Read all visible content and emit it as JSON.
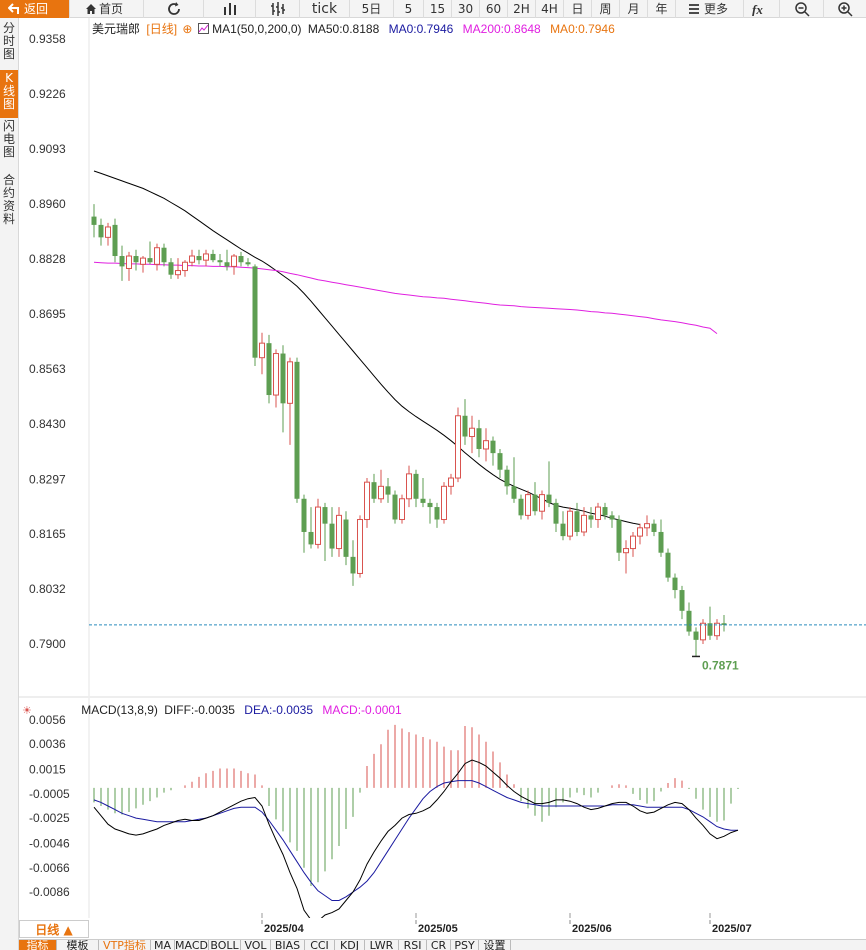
{
  "toolbar": {
    "back": "返回",
    "home": "首页",
    "tick": "tick",
    "periods": [
      "5日",
      "5",
      "15",
      "30",
      "60",
      "2H",
      "4H",
      "日",
      "周",
      "月",
      "年"
    ],
    "more": "更多",
    "icons": [
      "arrow-left-icon",
      "home-icon",
      "refresh-icon",
      "candle-type-icon",
      "bar-type-icon",
      "fx-icon",
      "zoom-out-icon",
      "zoom-in-icon"
    ]
  },
  "side_tabs": [
    "分时图",
    "K线图",
    "闪电图",
    "合约资料"
  ],
  "legend": {
    "symbol": "美元瑞郎",
    "period": "[日线]",
    "ma_label": "MA1(50,0,200,0)",
    "ma50": "MA50:0.8188",
    "ma0_a": "MA0:0.7946",
    "ma200": "MA200:0.8648",
    "ma0_b": "MA0:0.7946"
  },
  "macd_legend": {
    "name": "MACD(13,8,9)",
    "diff": "DIFF:-0.0035",
    "dea": "DEA:-0.0035",
    "macd": "MACD:-0.0001"
  },
  "colors": {
    "up": "#d9534f",
    "down": "#5e9e52",
    "ma50": "#000000",
    "ma200": "#e020e0",
    "diff": "#000000",
    "dea": "#1a1aa0",
    "last_price_line": "#2a8cbd",
    "accent": "#e8740f"
  },
  "chart_data": [
    {
      "type": "candlestick",
      "title": "美元瑞郎 [日线]",
      "ylim": [
        0.7805,
        0.94
      ],
      "y_ticks": [
        "0.9358",
        "0.9226",
        "0.9093",
        "0.8960",
        "0.8828",
        "0.8695",
        "0.8563",
        "0.8430",
        "0.8297",
        "0.8165",
        "0.8032",
        "0.7900"
      ],
      "x_tick_labels": [
        {
          "label": "2025/04",
          "index": 24
        },
        {
          "label": "2025/05",
          "index": 46
        },
        {
          "label": "2025/06",
          "index": 68
        },
        {
          "label": "2025/07",
          "index": 88
        }
      ],
      "last_price": 0.7946,
      "low_annotation": "0.7871",
      "low_annotation_index": 86,
      "ohlc": [
        [
          0.893,
          0.896,
          0.888,
          0.891
        ],
        [
          0.891,
          0.8925,
          0.886,
          0.888
        ],
        [
          0.888,
          0.8915,
          0.886,
          0.8905
        ],
        [
          0.891,
          0.8925,
          0.882,
          0.8835
        ],
        [
          0.8835,
          0.886,
          0.8775,
          0.881
        ],
        [
          0.8805,
          0.8845,
          0.8775,
          0.8835
        ],
        [
          0.8835,
          0.885,
          0.88,
          0.882
        ],
        [
          0.8815,
          0.8835,
          0.8795,
          0.883
        ],
        [
          0.883,
          0.887,
          0.8815,
          0.882
        ],
        [
          0.8815,
          0.8865,
          0.88,
          0.8855
        ],
        [
          0.8855,
          0.8865,
          0.881,
          0.882
        ],
        [
          0.882,
          0.883,
          0.878,
          0.879
        ],
        [
          0.879,
          0.883,
          0.878,
          0.88
        ],
        [
          0.88,
          0.8825,
          0.8785,
          0.882
        ],
        [
          0.882,
          0.885,
          0.881,
          0.8835
        ],
        [
          0.8835,
          0.885,
          0.8815,
          0.8825
        ],
        [
          0.8825,
          0.885,
          0.881,
          0.884
        ],
        [
          0.884,
          0.885,
          0.882,
          0.8825
        ],
        [
          0.8825,
          0.884,
          0.881,
          0.882
        ],
        [
          0.882,
          0.885,
          0.88,
          0.881
        ],
        [
          0.881,
          0.884,
          0.879,
          0.8835
        ],
        [
          0.8835,
          0.8845,
          0.881,
          0.882
        ],
        [
          0.882,
          0.883,
          0.881,
          0.8815
        ],
        [
          0.881,
          0.8815,
          0.857,
          0.859
        ],
        [
          0.859,
          0.865,
          0.855,
          0.8625
        ],
        [
          0.8625,
          0.8645,
          0.848,
          0.85
        ],
        [
          0.85,
          0.861,
          0.847,
          0.86
        ],
        [
          0.86,
          0.862,
          0.841,
          0.848
        ],
        [
          0.848,
          0.859,
          0.838,
          0.858
        ],
        [
          0.858,
          0.859,
          0.824,
          0.825
        ],
        [
          0.825,
          0.826,
          0.812,
          0.817
        ],
        [
          0.817,
          0.823,
          0.813,
          0.814
        ],
        [
          0.814,
          0.825,
          0.813,
          0.823
        ],
        [
          0.823,
          0.824,
          0.81,
          0.819
        ],
        [
          0.819,
          0.823,
          0.811,
          0.813
        ],
        [
          0.813,
          0.823,
          0.811,
          0.821
        ],
        [
          0.82,
          0.822,
          0.809,
          0.811
        ],
        [
          0.811,
          0.815,
          0.804,
          0.807
        ],
        [
          0.807,
          0.821,
          0.806,
          0.82
        ],
        [
          0.82,
          0.83,
          0.818,
          0.829
        ],
        [
          0.829,
          0.831,
          0.824,
          0.825
        ],
        [
          0.825,
          0.832,
          0.824,
          0.828
        ],
        [
          0.828,
          0.83,
          0.824,
          0.826
        ],
        [
          0.826,
          0.827,
          0.819,
          0.82
        ],
        [
          0.82,
          0.826,
          0.819,
          0.825
        ],
        [
          0.825,
          0.833,
          0.823,
          0.831
        ],
        [
          0.831,
          0.832,
          0.823,
          0.825
        ],
        [
          0.825,
          0.83,
          0.823,
          0.824
        ],
        [
          0.824,
          0.825,
          0.819,
          0.823
        ],
        [
          0.823,
          0.824,
          0.818,
          0.82
        ],
        [
          0.82,
          0.829,
          0.819,
          0.828
        ],
        [
          0.828,
          0.831,
          0.826,
          0.83
        ],
        [
          0.83,
          0.847,
          0.829,
          0.845
        ],
        [
          0.845,
          0.849,
          0.838,
          0.84
        ],
        [
          0.84,
          0.845,
          0.836,
          0.842
        ],
        [
          0.842,
          0.844,
          0.835,
          0.837
        ],
        [
          0.837,
          0.842,
          0.834,
          0.839
        ],
        [
          0.839,
          0.84,
          0.833,
          0.836
        ],
        [
          0.836,
          0.837,
          0.83,
          0.832
        ],
        [
          0.832,
          0.833,
          0.826,
          0.828
        ],
        [
          0.828,
          0.835,
          0.824,
          0.825
        ],
        [
          0.825,
          0.826,
          0.82,
          0.821
        ],
        [
          0.821,
          0.827,
          0.82,
          0.826
        ],
        [
          0.826,
          0.829,
          0.821,
          0.822
        ],
        [
          0.822,
          0.827,
          0.82,
          0.826
        ],
        [
          0.826,
          0.834,
          0.823,
          0.824
        ],
        [
          0.824,
          0.825,
          0.817,
          0.819
        ],
        [
          0.819,
          0.822,
          0.815,
          0.816
        ],
        [
          0.816,
          0.823,
          0.815,
          0.822
        ],
        [
          0.822,
          0.824,
          0.816,
          0.817
        ],
        [
          0.817,
          0.823,
          0.816,
          0.821
        ],
        [
          0.821,
          0.823,
          0.818,
          0.82
        ],
        [
          0.82,
          0.824,
          0.818,
          0.823
        ],
        [
          0.823,
          0.824,
          0.82,
          0.821
        ],
        [
          0.821,
          0.822,
          0.818,
          0.82
        ],
        [
          0.82,
          0.821,
          0.81,
          0.812
        ],
        [
          0.812,
          0.815,
          0.807,
          0.813
        ],
        [
          0.813,
          0.817,
          0.811,
          0.816
        ],
        [
          0.816,
          0.819,
          0.814,
          0.818
        ],
        [
          0.818,
          0.821,
          0.816,
          0.819
        ],
        [
          0.819,
          0.82,
          0.816,
          0.817
        ],
        [
          0.817,
          0.82,
          0.811,
          0.812
        ],
        [
          0.812,
          0.813,
          0.805,
          0.806
        ],
        [
          0.806,
          0.807,
          0.801,
          0.803
        ],
        [
          0.803,
          0.804,
          0.796,
          0.798
        ],
        [
          0.798,
          0.8,
          0.792,
          0.793
        ],
        [
          0.793,
          0.794,
          0.787,
          0.791
        ],
        [
          0.791,
          0.796,
          0.79,
          0.795
        ],
        [
          0.795,
          0.799,
          0.791,
          0.792
        ],
        [
          0.792,
          0.796,
          0.791,
          0.795
        ],
        [
          0.795,
          0.797,
          0.793,
          0.7946
        ]
      ],
      "ma50": {
        "start_index": 0,
        "values": [
          0.904,
          0.9034,
          0.9028,
          0.9022,
          0.9016,
          0.901,
          0.9004,
          0.8998,
          0.899,
          0.8982,
          0.8974,
          0.8964,
          0.8954,
          0.8944,
          0.8932,
          0.892,
          0.8908,
          0.8896,
          0.8885,
          0.8874,
          0.8863,
          0.8852,
          0.8842,
          0.8832,
          0.8823,
          0.8812,
          0.88,
          0.8788,
          0.8776,
          0.8762,
          0.8745,
          0.8726,
          0.8706,
          0.8686,
          0.8666,
          0.8646,
          0.8626,
          0.8606,
          0.8586,
          0.8566,
          0.8546,
          0.8526,
          0.8507,
          0.8489,
          0.8473,
          0.846,
          0.8448,
          0.8437,
          0.8426,
          0.8415,
          0.8403,
          0.839,
          0.8376,
          0.8361,
          0.8347,
          0.8333,
          0.832,
          0.8308,
          0.8297,
          0.8288,
          0.828,
          0.8273,
          0.8266,
          0.8258,
          0.825,
          0.8241,
          0.8234,
          0.823,
          0.8227,
          0.8224,
          0.822,
          0.8215,
          0.8212,
          0.8208,
          0.8203,
          0.8199,
          0.8195,
          0.8191,
          0.8188
        ]
      },
      "ma200": {
        "start_index": 0,
        "values": [
          0.882,
          0.8819,
          0.8818,
          0.8818,
          0.8817,
          0.8816,
          0.8816,
          0.8815,
          0.8815,
          0.8814,
          0.8814,
          0.8813,
          0.8813,
          0.8812,
          0.8812,
          0.8811,
          0.8811,
          0.881,
          0.881,
          0.8809,
          0.8809,
          0.8808,
          0.8807,
          0.8806,
          0.8804,
          0.8802,
          0.88,
          0.8797,
          0.8793,
          0.879,
          0.8786,
          0.8782,
          0.8778,
          0.8775,
          0.8772,
          0.8769,
          0.8766,
          0.8763,
          0.876,
          0.8757,
          0.8754,
          0.8751,
          0.8748,
          0.8745,
          0.8743,
          0.8741,
          0.8739,
          0.8737,
          0.8736,
          0.8734,
          0.8733,
          0.8731,
          0.8729,
          0.8727,
          0.8725,
          0.8723,
          0.8721,
          0.8719,
          0.8717,
          0.8716,
          0.8715,
          0.8713,
          0.8712,
          0.8711,
          0.871,
          0.8709,
          0.8708,
          0.8707,
          0.8706,
          0.8705,
          0.8703,
          0.8701,
          0.87,
          0.8698,
          0.8697,
          0.8695,
          0.8693,
          0.8691,
          0.8689,
          0.8687,
          0.8684,
          0.8681,
          0.8679,
          0.8677,
          0.8674,
          0.8671,
          0.8668,
          0.8664,
          0.8661,
          0.8648
        ]
      }
    },
    {
      "type": "macd",
      "title": "MACD(13,8,9)",
      "ylim": [
        -0.0111,
        0.0063
      ],
      "y_ticks": [
        "0.0056",
        "0.0036",
        "0.0015",
        "-0.0005",
        "-0.0025",
        "-0.0046",
        "-0.0066",
        "-0.0086"
      ],
      "histogram": [
        -0.0012,
        -0.0015,
        -0.0018,
        -0.0021,
        -0.0022,
        -0.002,
        -0.0017,
        -0.0014,
        -0.0011,
        -0.0008,
        -0.0004,
        -0.0002,
        0.0,
        0.0002,
        0.0005,
        0.0009,
        0.0012,
        0.0014,
        0.0016,
        0.0016,
        0.0016,
        0.0014,
        0.0012,
        0.0011,
        0.0002,
        -0.0015,
        -0.0026,
        -0.0036,
        -0.0045,
        -0.0052,
        -0.0066,
        -0.0081,
        -0.0078,
        -0.0069,
        -0.0059,
        -0.0048,
        -0.0034,
        -0.0024,
        -0.0004,
        0.0018,
        0.0028,
        0.0036,
        0.0048,
        0.0052,
        0.0049,
        0.0046,
        0.0044,
        0.0042,
        0.004,
        0.0038,
        0.0034,
        0.0031,
        0.0031,
        0.0051,
        0.005,
        0.0044,
        0.0038,
        0.003,
        0.0021,
        0.0011,
        0.0003,
        -0.0011,
        -0.0017,
        -0.0023,
        -0.0028,
        -0.0023,
        -0.0016,
        -0.0012,
        -0.0008,
        -0.0004,
        -0.0006,
        -0.0008,
        -0.0004,
        0.0,
        0.0002,
        0.0003,
        0.0002,
        -0.0005,
        -0.001,
        -0.0013,
        -0.0011,
        -0.0003,
        0.0004,
        0.0008,
        0.0006,
        -0.0001,
        -0.0009,
        -0.0018,
        -0.0024,
        -0.0028,
        -0.0027,
        -0.0013,
        -0.0001
      ],
      "diff": [
        -0.0016,
        -0.0023,
        -0.003,
        -0.0034,
        -0.0036,
        -0.0038,
        -0.0039,
        -0.0038,
        -0.0036,
        -0.0034,
        -0.0031,
        -0.0029,
        -0.0027,
        -0.0026,
        -0.0027,
        -0.0027,
        -0.0025,
        -0.0023,
        -0.002,
        -0.0017,
        -0.0014,
        -0.0011,
        -0.0009,
        -0.0008,
        -0.0015,
        -0.003,
        -0.0043,
        -0.0055,
        -0.007,
        -0.0083,
        -0.0101,
        -0.0109,
        -0.011,
        -0.0105,
        -0.0103,
        -0.01,
        -0.0093,
        -0.0086,
        -0.0076,
        -0.0063,
        -0.0053,
        -0.0044,
        -0.0036,
        -0.0031,
        -0.0025,
        -0.0022,
        -0.0021,
        -0.0019,
        -0.0016,
        -0.001,
        -0.0003,
        0.0005,
        0.0012,
        0.002,
        0.0023,
        0.0021,
        0.0018,
        0.0013,
        0.0008,
        0.0002,
        -0.0003,
        -0.0007,
        -0.001,
        -0.0013,
        -0.0013,
        -0.0012,
        -0.001,
        -0.001,
        -0.0011,
        -0.0013,
        -0.0016,
        -0.0018,
        -0.0017,
        -0.0015,
        -0.0013,
        -0.0012,
        -0.0012,
        -0.0015,
        -0.0019,
        -0.0021,
        -0.002,
        -0.0017,
        -0.0014,
        -0.0012,
        -0.0013,
        -0.0018,
        -0.0025,
        -0.0031,
        -0.0038,
        -0.0042,
        -0.004,
        -0.0037,
        -0.0035
      ],
      "dea": [
        -0.001,
        -0.0012,
        -0.0015,
        -0.0018,
        -0.0021,
        -0.0023,
        -0.0025,
        -0.0026,
        -0.0027,
        -0.0028,
        -0.0028,
        -0.0028,
        -0.0028,
        -0.0028,
        -0.0027,
        -0.0026,
        -0.0025,
        -0.0023,
        -0.0021,
        -0.0019,
        -0.0017,
        -0.0016,
        -0.0016,
        -0.0016,
        -0.002,
        -0.0027,
        -0.0035,
        -0.0043,
        -0.0052,
        -0.0061,
        -0.007,
        -0.0078,
        -0.0085,
        -0.0089,
        -0.0093,
        -0.0093,
        -0.009,
        -0.0086,
        -0.0082,
        -0.0077,
        -0.007,
        -0.0061,
        -0.0052,
        -0.0043,
        -0.0034,
        -0.0025,
        -0.0017,
        -0.0009,
        -0.0003,
        0.0001,
        0.0004,
        0.0005,
        0.0006,
        0.0006,
        0.0006,
        0.0004,
        0.0001,
        -0.0002,
        -0.0005,
        -0.0008,
        -0.001,
        -0.0012,
        -0.0013,
        -0.0014,
        -0.0015,
        -0.0015,
        -0.0015,
        -0.0015,
        -0.0015,
        -0.0015,
        -0.0015,
        -0.0015,
        -0.0015,
        -0.0015,
        -0.0014,
        -0.0014,
        -0.0014,
        -0.0014,
        -0.0015,
        -0.0016,
        -0.0016,
        -0.0016,
        -0.0016,
        -0.0016,
        -0.0016,
        -0.0018,
        -0.0021,
        -0.0024,
        -0.0028,
        -0.0032,
        -0.0034,
        -0.0035,
        -0.0035
      ]
    }
  ],
  "period_button": "日线 ▲",
  "bottom_tabs": [
    "指标",
    "模板",
    "VTP指标",
    "MA",
    "MACD",
    "BOLL",
    "VOL",
    "BIAS",
    "CCI",
    "KDJ",
    "LWR",
    "RSI",
    "CR",
    "PSY",
    "设置"
  ]
}
